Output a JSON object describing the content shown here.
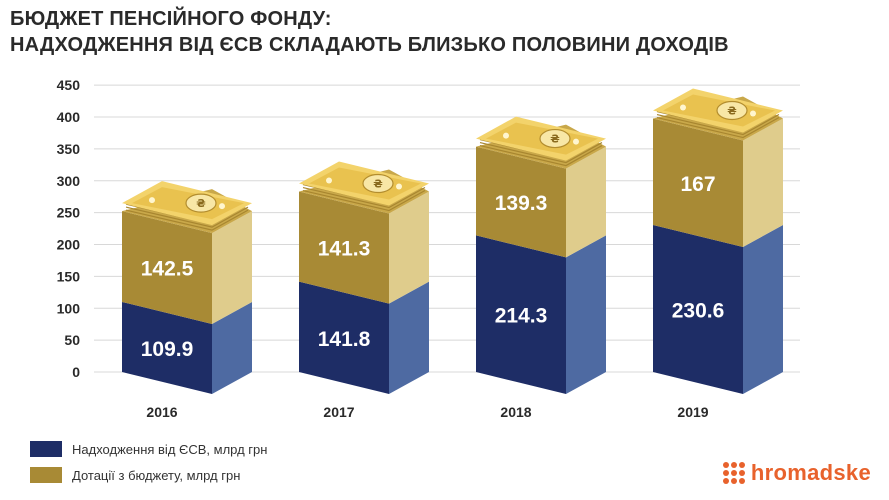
{
  "title": {
    "line1": "БЮДЖЕТ ПЕНСІЙНОГО ФОНДУ:",
    "line2": "НАДХОДЖЕННЯ ВІД ЄСВ СКЛАДАЮТЬ БЛИЗЬКО ПОЛОВИНИ ДОХОДІВ"
  },
  "colors": {
    "esv_front": "#1e2d66",
    "esv_side": "#4e6aa2",
    "esv_top": "#2b3d7a",
    "dot_front": "#a88a35",
    "dot_side": "#dfcc8c",
    "dot_top": "#c9a84a",
    "brand": "#e8622c",
    "grid": "#d8d8d8",
    "text": "#2a2a2a"
  },
  "chart_data": {
    "type": "bar",
    "stacked": true,
    "categories": [
      "2016",
      "2017",
      "2018",
      "2019"
    ],
    "series": [
      {
        "name": "Надходження від ЄСВ, млрд грн",
        "values": [
          109.9,
          141.8,
          214.3,
          230.6
        ]
      },
      {
        "name": "Дотації з бюджету, млрд грн",
        "values": [
          142.5,
          141.3,
          139.3,
          167
        ]
      }
    ],
    "value_labels": [
      [
        "109.9",
        "141.8",
        "214.3",
        "230.6"
      ],
      [
        "142.5",
        "141.3",
        "139.3",
        "167"
      ]
    ],
    "yticks": [
      "0",
      "50",
      "100",
      "150",
      "200",
      "250",
      "300",
      "350",
      "400",
      "450"
    ],
    "ylim": [
      0,
      450
    ],
    "grid": true,
    "legend_position": "bottom-left",
    "money_symbol": "₴"
  },
  "legend": {
    "items": [
      {
        "label": "Надходження від ЄСВ, млрд грн"
      },
      {
        "label": "Дотації з бюджету, млрд грн"
      }
    ]
  },
  "brand": {
    "name": "hromadske"
  }
}
